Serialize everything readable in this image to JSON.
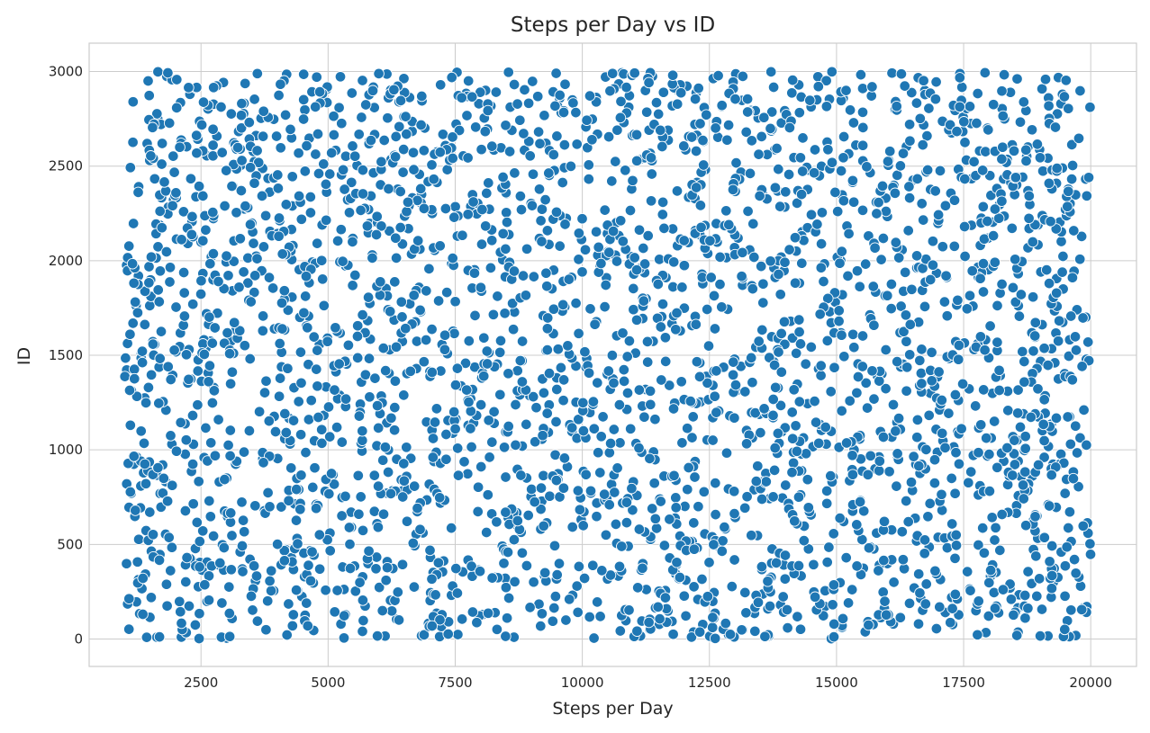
{
  "chart_data": {
    "type": "scatter",
    "title": "Steps per Day vs ID",
    "xlabel": "Steps per Day",
    "ylabel": "ID",
    "xlim": [
      300,
      20900
    ],
    "ylim": [
      -145,
      3150
    ],
    "xticks": [
      2500,
      5000,
      7500,
      10000,
      12500,
      15000,
      17500,
      20000
    ],
    "yticks": [
      0,
      500,
      1000,
      1500,
      2000,
      2500,
      3000
    ],
    "grid": true,
    "legend": "none",
    "point_color": "#1f77b4",
    "n_points": 3000,
    "x_range": [
      1000,
      20000
    ],
    "y_range": [
      0,
      3000
    ],
    "distribution": "uniform random"
  }
}
